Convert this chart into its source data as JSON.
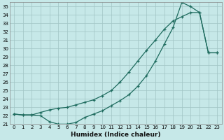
{
  "xlabel": "Humidex (Indice chaleur)",
  "xlim": [
    -0.5,
    23.5
  ],
  "ylim": [
    21,
    35.5
  ],
  "xticks": [
    0,
    1,
    2,
    3,
    4,
    5,
    6,
    7,
    8,
    9,
    10,
    11,
    12,
    13,
    14,
    15,
    16,
    17,
    18,
    19,
    20,
    21,
    22,
    23
  ],
  "yticks": [
    21,
    22,
    23,
    24,
    25,
    26,
    27,
    28,
    29,
    30,
    31,
    32,
    33,
    34,
    35
  ],
  "bg_color": "#c6e8e8",
  "grid_color": "#a0c4c4",
  "line_color": "#1e6b5e",
  "curve1_x": [
    0,
    1,
    2,
    3,
    4,
    5,
    6,
    7,
    8,
    9,
    10,
    11,
    12,
    13,
    14,
    15,
    16,
    17,
    18,
    19,
    20,
    21,
    22,
    23
  ],
  "curve1_y": [
    22.2,
    22.1,
    22.1,
    22.0,
    21.3,
    21.0,
    21.0,
    21.2,
    21.8,
    22.2,
    22.6,
    23.2,
    23.8,
    24.5,
    25.5,
    26.8,
    28.5,
    30.5,
    32.5,
    35.5,
    35.0,
    34.3,
    29.5,
    29.5
  ],
  "curve2_x": [
    0,
    1,
    2,
    3,
    4,
    5,
    6,
    7,
    8,
    9,
    10,
    11,
    12,
    13,
    14,
    15,
    16,
    17,
    18,
    19,
    20,
    21,
    22,
    23
  ],
  "curve2_y": [
    22.2,
    22.1,
    22.1,
    22.4,
    22.7,
    22.9,
    23.0,
    23.3,
    23.6,
    23.9,
    24.4,
    25.0,
    26.0,
    27.2,
    28.5,
    29.8,
    31.0,
    32.3,
    33.3,
    33.8,
    34.3,
    34.3,
    29.5,
    29.5
  ]
}
